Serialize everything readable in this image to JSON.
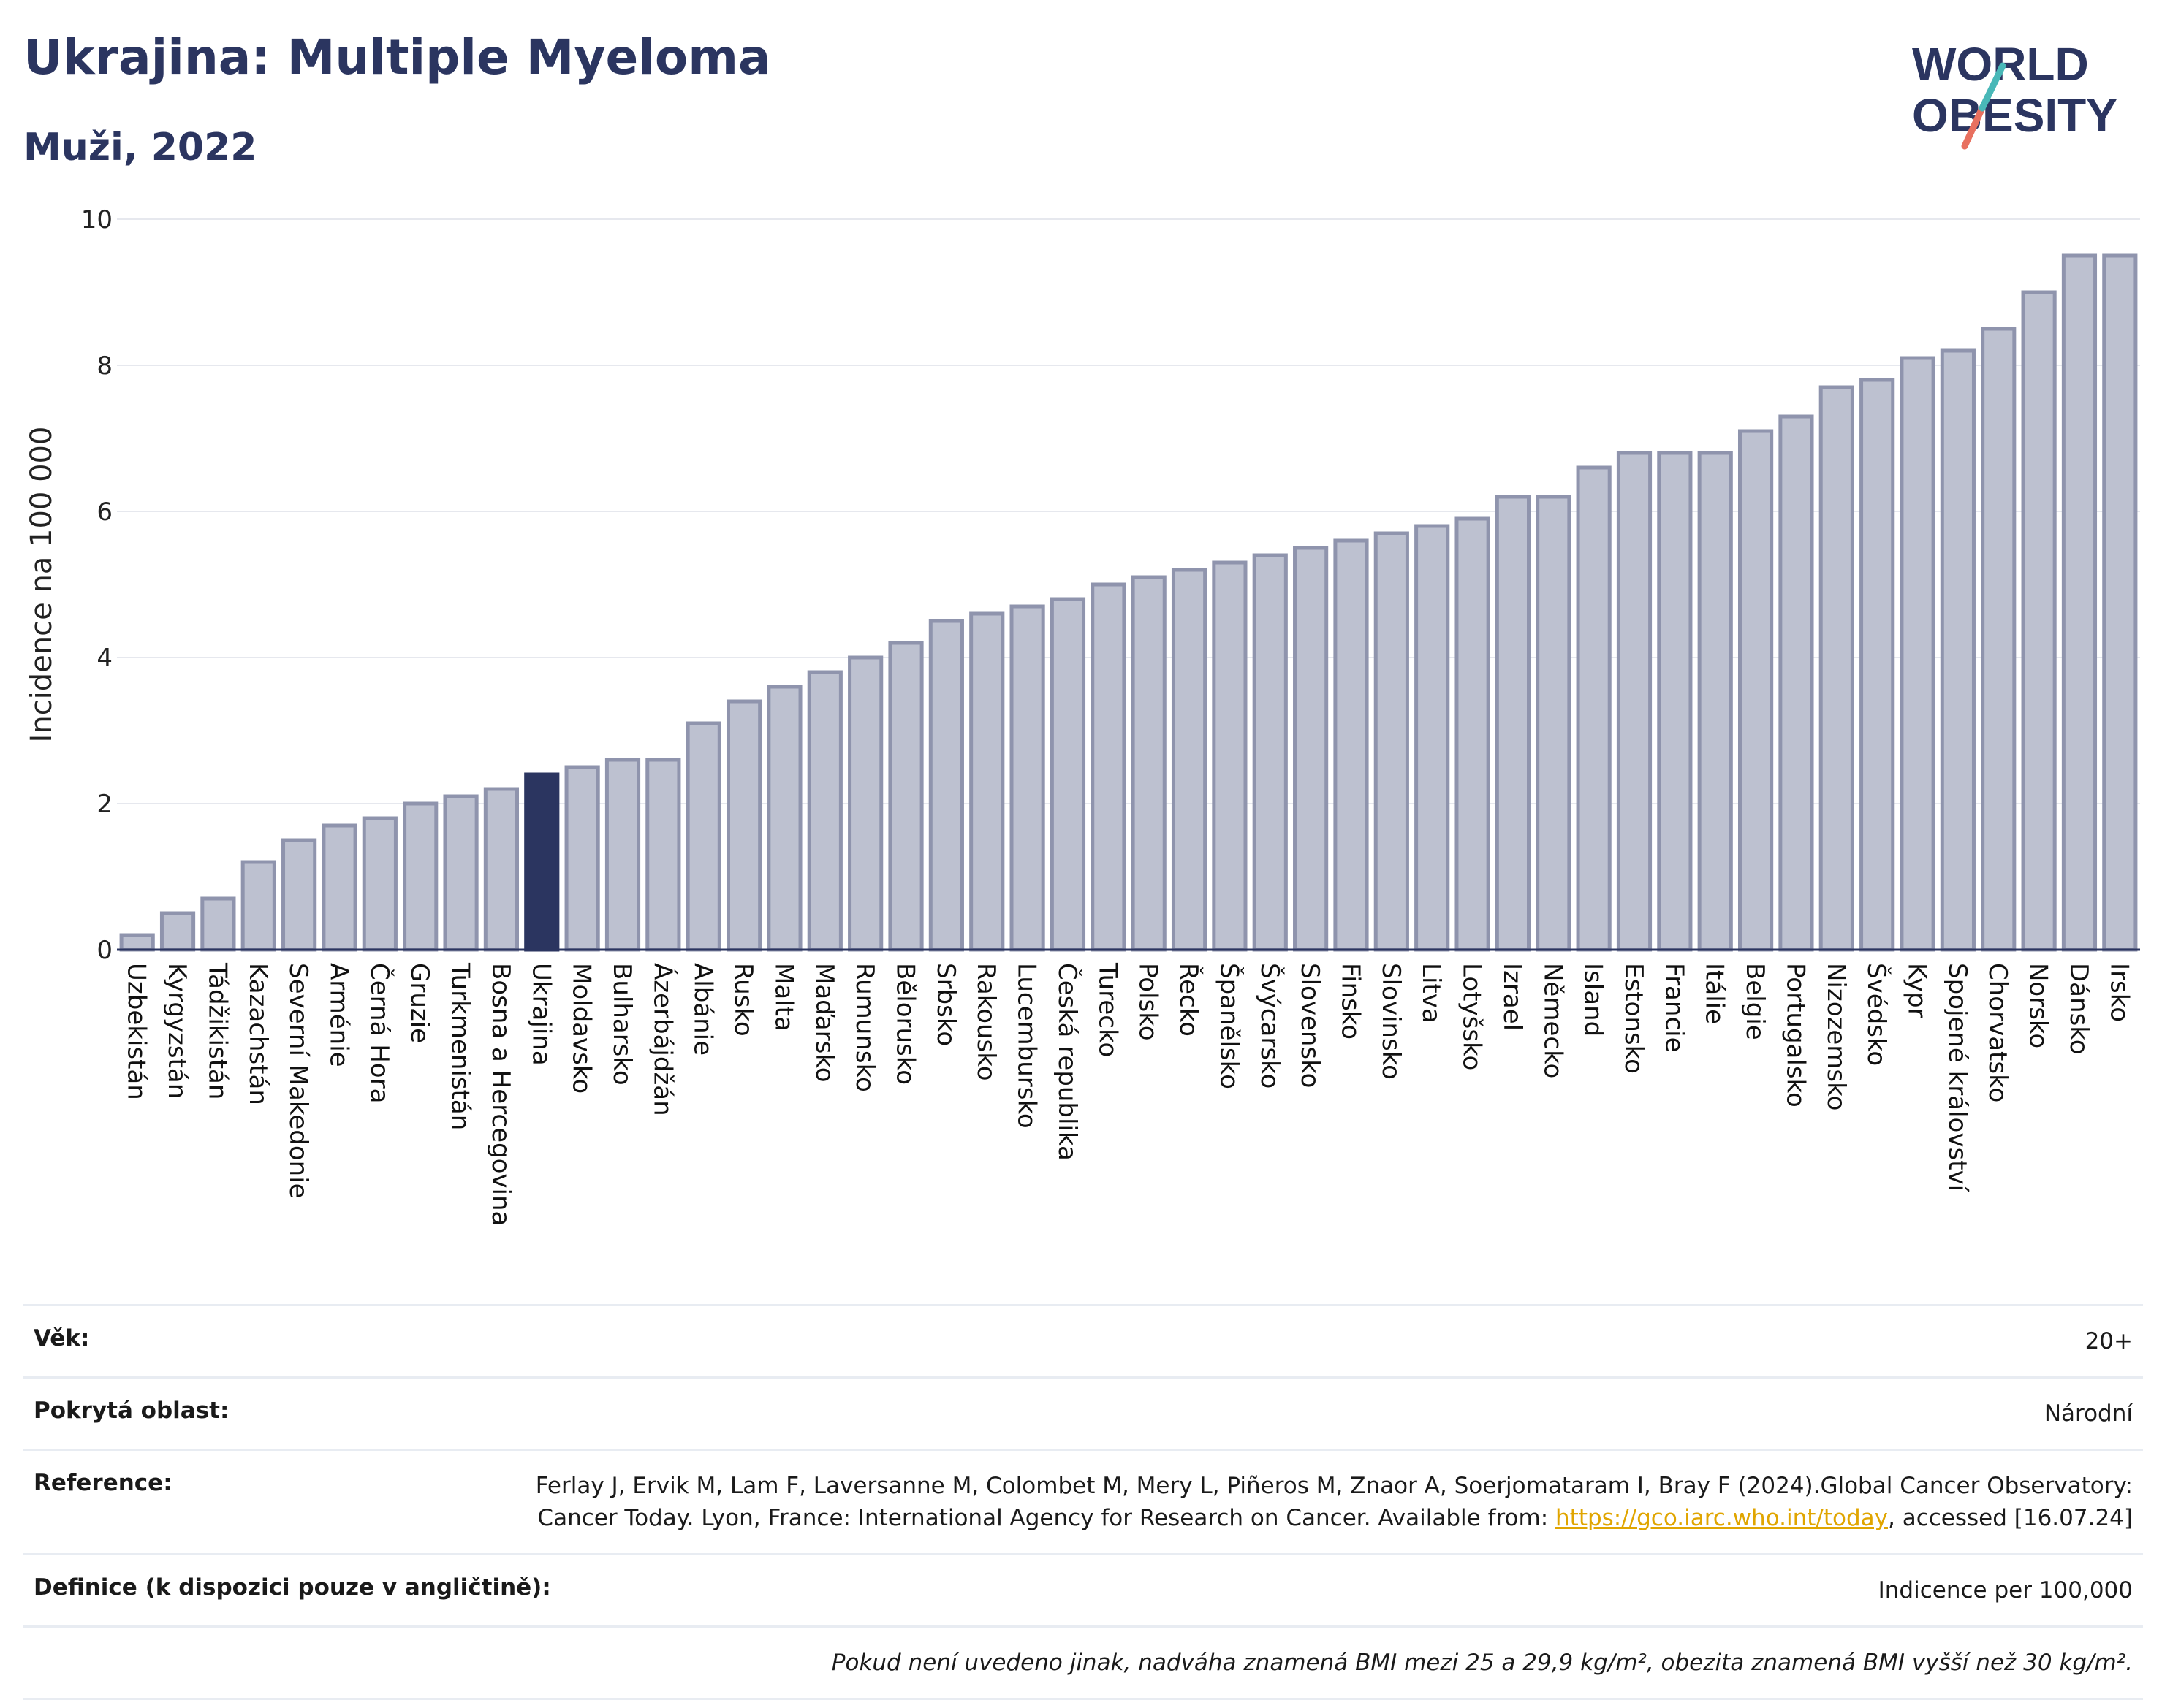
{
  "header": {
    "title": "Ukrajina: Multiple Myeloma",
    "subtitle": "Muži, 2022"
  },
  "logo": {
    "line1": "WORLD",
    "line2": "OBESITY",
    "icon": "world-obesity-logo"
  },
  "colors": {
    "bar": "#bdc1d0",
    "bar_stroke": "#8f94ad",
    "highlight": "#2b3560",
    "grid": "#e6e8ee"
  },
  "chart_data": {
    "type": "bar",
    "ylabel": "Incidence na 100 000",
    "ylim": [
      0,
      10
    ],
    "yticks": [
      0,
      2,
      4,
      6,
      8,
      10
    ],
    "highlight": "Ukrajina",
    "categories": [
      "Uzbekistán",
      "Kyrgyzstán",
      "Tádžikistán",
      "Kazachstán",
      "Severní Makedonie",
      "Arménie",
      "Černá Hora",
      "Gruzie",
      "Turkmenistán",
      "Bosna a Hercegovina",
      "Ukrajina",
      "Moldavsko",
      "Bulharsko",
      "Ázerbájdžán",
      "Albánie",
      "Rusko",
      "Malta",
      "Maďarsko",
      "Rumunsko",
      "Bělorusko",
      "Srbsko",
      "Rakousko",
      "Lucembursko",
      "Česká republika",
      "Turecko",
      "Polsko",
      "Řecko",
      "Španělsko",
      "Švýcarsko",
      "Slovensko",
      "Finsko",
      "Slovinsko",
      "Litva",
      "Lotyšsko",
      "Izrael",
      "Německo",
      "Island",
      "Estonsko",
      "Francie",
      "Itálie",
      "Belgie",
      "Portugalsko",
      "Nizozemsko",
      "Švédsko",
      "Kypr",
      "Spojené království",
      "Chorvatsko",
      "Norsko",
      "Dánsko",
      "Irsko"
    ],
    "values": [
      0.2,
      0.5,
      0.7,
      1.2,
      1.5,
      1.7,
      1.8,
      2.0,
      2.1,
      2.2,
      2.4,
      2.5,
      2.6,
      2.6,
      3.1,
      3.4,
      3.6,
      3.8,
      4.0,
      4.2,
      4.5,
      4.6,
      4.7,
      4.8,
      5.0,
      5.1,
      5.2,
      5.3,
      5.4,
      5.5,
      5.6,
      5.7,
      5.8,
      5.9,
      6.2,
      6.2,
      6.6,
      6.8,
      6.8,
      6.8,
      7.1,
      7.3,
      7.7,
      7.8,
      8.1,
      8.2,
      8.5,
      9.0,
      9.5,
      9.5
    ]
  },
  "info": {
    "age_label": "Věk:",
    "age_value": "20+",
    "area_label": "Pokrytá oblast:",
    "area_value": "Národní",
    "ref_label": "Reference:",
    "ref_text_1": "Ferlay J, Ervik M, Lam F, Laversanne M, Colombet M, Mery L, Piñeros M, Znaor A, Soerjomataram I, Bray F (2024).Global Cancer Observatory: Cancer Today. Lyon, France: International Agency for Research on Cancer. Available from: ",
    "ref_link": "https://gco.iarc.who.int/today",
    "ref_text_2": ", accessed [16.07.24]",
    "def_label": "Definice (k dispozici pouze v angličtině):",
    "def_value": "Indicence per 100,000",
    "note": "Pokud není uvedeno jinak, nadváha znamená BMI mezi 25 a 29,9 kg/m², obezita znamená BMI vyšší než 30 kg/m²."
  }
}
